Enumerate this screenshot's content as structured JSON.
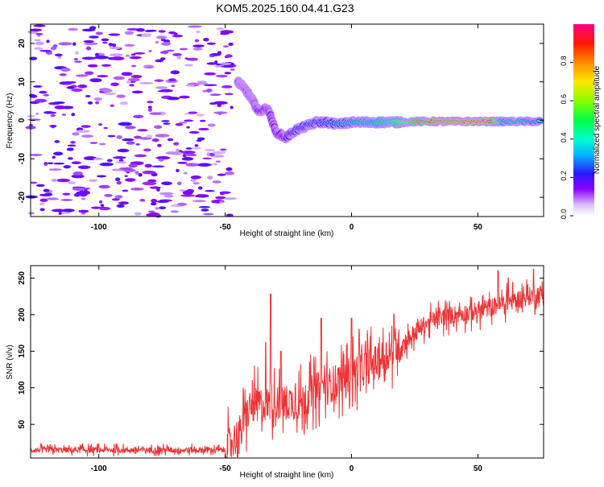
{
  "title": "KOM5.2025.160.04.41.G23",
  "chart_data": [
    {
      "type": "heatmap",
      "xlabel": "Height of straight line (km)",
      "ylabel": "Frequency (Hz)",
      "xlim": [
        -127,
        76
      ],
      "ylim": [
        -25,
        25
      ],
      "xticks": [
        -100,
        -50,
        0,
        50
      ],
      "yticks": [
        -20,
        -10,
        0,
        10,
        20
      ],
      "colorbar": {
        "label": "Normalized spectral amplitude",
        "range": [
          0,
          1
        ],
        "ticks": [
          0.0,
          0.2,
          0.4,
          0.6,
          0.8
        ],
        "tick_labels": [
          "0.0",
          "0.2",
          "0.4",
          "0.6",
          "0.8"
        ]
      },
      "ridge": [
        {
          "x": -45,
          "y": 10,
          "amp": 0.15
        },
        {
          "x": -42,
          "y": 8,
          "amp": 0.15
        },
        {
          "x": -39,
          "y": 5,
          "amp": 0.15
        },
        {
          "x": -37,
          "y": 2.5,
          "amp": 0.25
        },
        {
          "x": -33,
          "y": 3,
          "amp": 0.2
        },
        {
          "x": -30,
          "y": -3,
          "amp": 0.2
        },
        {
          "x": -26,
          "y": -4.5,
          "amp": 0.25
        },
        {
          "x": -22,
          "y": -2.5,
          "amp": 0.3
        },
        {
          "x": -18,
          "y": -1.5,
          "amp": 0.35
        },
        {
          "x": -14,
          "y": -0.5,
          "amp": 0.35
        },
        {
          "x": -10,
          "y": -0.5,
          "amp": 0.35
        },
        {
          "x": -5,
          "y": -1,
          "amp": 0.4
        },
        {
          "x": 0,
          "y": -0.5,
          "amp": 0.45
        },
        {
          "x": 5,
          "y": -0.5,
          "amp": 0.5
        },
        {
          "x": 10,
          "y": -0.5,
          "amp": 0.5
        },
        {
          "x": 15,
          "y": -0.5,
          "amp": 0.55
        },
        {
          "x": 20,
          "y": -0.5,
          "amp": 0.6
        },
        {
          "x": 25,
          "y": -0.3,
          "amp": 0.8
        },
        {
          "x": 30,
          "y": -0.3,
          "amp": 0.9
        },
        {
          "x": 35,
          "y": -0.3,
          "amp": 1.0
        },
        {
          "x": 40,
          "y": -0.3,
          "amp": 1.0
        },
        {
          "x": 45,
          "y": -0.3,
          "amp": 1.0
        },
        {
          "x": 50,
          "y": -0.3,
          "amp": 1.0
        },
        {
          "x": 55,
          "y": -0.3,
          "amp": 1.0
        },
        {
          "x": 60,
          "y": -0.3,
          "amp": 0.45
        },
        {
          "x": 65,
          "y": -0.3,
          "amp": 0.5
        },
        {
          "x": 70,
          "y": -0.3,
          "amp": 0.45
        },
        {
          "x": 75,
          "y": -0.3,
          "amp": 0.4
        }
      ],
      "noise_x_range": [
        -127,
        -47
      ],
      "noise_amp": 0.15
    },
    {
      "type": "line",
      "xlabel": "Height of straight line (km)",
      "ylabel": "SNR (v/v)",
      "xlim": [
        -127,
        76
      ],
      "ylim": [
        4,
        267
      ],
      "xticks": [
        -100,
        -50,
        0,
        50
      ],
      "yticks": [
        50,
        100,
        150,
        200,
        250
      ],
      "series": [
        {
          "color": "#ee3333",
          "trend": [
            {
              "x": -127,
              "y": 15
            },
            {
              "x": -50,
              "y": 15
            },
            {
              "x": -44,
              "y": 40
            },
            {
              "x": -40,
              "y": 75
            },
            {
              "x": -30,
              "y": 80
            },
            {
              "x": -20,
              "y": 80
            },
            {
              "x": -15,
              "y": 95
            },
            {
              "x": -8,
              "y": 105
            },
            {
              "x": 0,
              "y": 120
            },
            {
              "x": 10,
              "y": 135
            },
            {
              "x": 20,
              "y": 160
            },
            {
              "x": 30,
              "y": 190
            },
            {
              "x": 40,
              "y": 200
            },
            {
              "x": 50,
              "y": 205
            },
            {
              "x": 60,
              "y": 215
            },
            {
              "x": 70,
              "y": 225
            },
            {
              "x": 76,
              "y": 230
            }
          ],
          "peaks": [
            {
              "x": -34,
              "y": 162
            },
            {
              "x": -32,
              "y": 228
            },
            {
              "x": -28,
              "y": 150
            },
            {
              "x": -12,
              "y": 195
            },
            {
              "x": 0,
              "y": 195
            },
            {
              "x": 3,
              "y": 180
            },
            {
              "x": 30,
              "y": 190
            },
            {
              "x": 58,
              "y": 260
            },
            {
              "x": 62,
              "y": 250
            },
            {
              "x": 72,
              "y": 262
            }
          ]
        }
      ]
    }
  ]
}
